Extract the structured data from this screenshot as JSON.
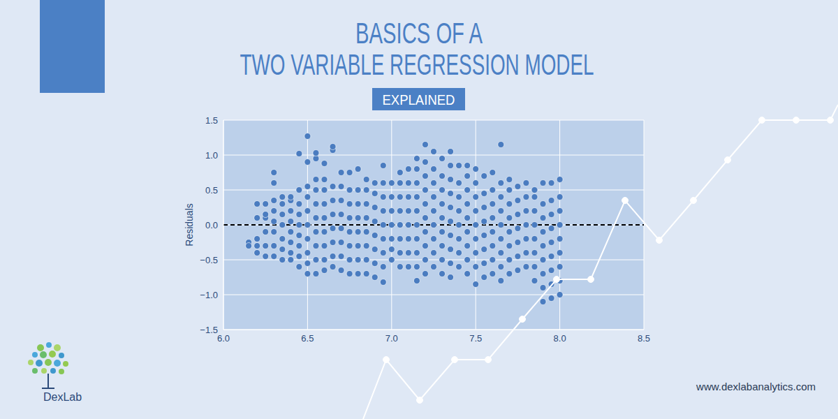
{
  "header": {
    "title": [
      "BASICS OF A",
      "TWO VARIABLE REGRESSION MODEL"
    ],
    "subtitle": "EXPLAINED"
  },
  "logo": "DexLab",
  "footer": "www.dexlabanalytics.com",
  "chart_data": {
    "type": "scatter",
    "y_label": "Residuals",
    "color": "#4a7cc0",
    "marker": "circle",
    "grid": true,
    "xlim": [
      6.0,
      8.5
    ],
    "xticks": [
      {
        "value": 6,
        "label": "6.0"
      },
      6.5,
      {
        "value": 7,
        "label": "7.0"
      },
      7.5,
      {
        "value": 8,
        "label": "8.0"
      },
      8.5
    ],
    "ylim": [
      -1.5,
      1.5
    ],
    "yticks": [
      {
        "value": -1.5,
        "label": "−1.5"
      },
      {
        "value": -1,
        "label": "−1.0"
      },
      {
        "value": -0.5,
        "label": "−0.5"
      },
      {
        "value": 0,
        "label": "0.0"
      },
      0.5,
      {
        "value": 1,
        "label": "1.0"
      },
      1.5
    ],
    "reference_line": {
      "y": 0,
      "color": "#000000",
      "line_style": "dashed"
    },
    "x": [
      6.15,
      6.15,
      6.2,
      6.2,
      6.2,
      6.2,
      6.2,
      6.25,
      6.25,
      6.25,
      6.25,
      6.25,
      6.25,
      6.3,
      6.3,
      6.3,
      6.3,
      6.3,
      6.3,
      6.3,
      6.3,
      6.35,
      6.35,
      6.35,
      6.35,
      6.35,
      6.35,
      6.35,
      6.4,
      6.4,
      6.4,
      6.4,
      6.4,
      6.4,
      6.4,
      6.4,
      6.45,
      6.45,
      6.45,
      6.45,
      6.45,
      6.45,
      6.45,
      6.45,
      6.45,
      6.5,
      6.5,
      6.5,
      6.5,
      6.5,
      6.5,
      6.5,
      6.5,
      6.5,
      6.5,
      6.55,
      6.55,
      6.55,
      6.55,
      6.55,
      6.55,
      6.55,
      6.55,
      6.55,
      6.55,
      6.6,
      6.6,
      6.6,
      6.6,
      6.6,
      6.6,
      6.6,
      6.6,
      6.6,
      6.65,
      6.65,
      6.65,
      6.65,
      6.65,
      6.65,
      6.65,
      6.65,
      6.65,
      6.7,
      6.7,
      6.7,
      6.7,
      6.7,
      6.7,
      6.7,
      6.7,
      6.75,
      6.75,
      6.75,
      6.75,
      6.75,
      6.75,
      6.75,
      6.75,
      6.8,
      6.8,
      6.8,
      6.8,
      6.8,
      6.8,
      6.8,
      6.8,
      6.85,
      6.85,
      6.85,
      6.85,
      6.85,
      6.85,
      6.85,
      6.85,
      6.9,
      6.9,
      6.9,
      6.9,
      6.9,
      6.9,
      6.9,
      6.9,
      6.95,
      6.95,
      6.95,
      6.95,
      6.95,
      6.95,
      6.95,
      6.95,
      6.95,
      7.0,
      7.0,
      7.0,
      7.0,
      7.0,
      7.0,
      7.0,
      7.05,
      7.05,
      7.05,
      7.05,
      7.05,
      7.05,
      7.05,
      7.05,
      7.1,
      7.1,
      7.1,
      7.1,
      7.1,
      7.1,
      7.1,
      7.1,
      7.15,
      7.15,
      7.15,
      7.15,
      7.15,
      7.15,
      7.15,
      7.15,
      7.15,
      7.15,
      7.2,
      7.2,
      7.2,
      7.2,
      7.2,
      7.2,
      7.2,
      7.2,
      7.2,
      7.2,
      7.25,
      7.25,
      7.25,
      7.25,
      7.25,
      7.25,
      7.25,
      7.25,
      7.25,
      7.3,
      7.3,
      7.3,
      7.3,
      7.3,
      7.3,
      7.3,
      7.3,
      7.3,
      7.35,
      7.35,
      7.35,
      7.35,
      7.35,
      7.35,
      7.35,
      7.35,
      7.35,
      7.35,
      7.4,
      7.4,
      7.4,
      7.4,
      7.4,
      7.4,
      7.4,
      7.4,
      7.45,
      7.45,
      7.45,
      7.45,
      7.45,
      7.45,
      7.45,
      7.45,
      7.45,
      7.5,
      7.5,
      7.5,
      7.5,
      7.5,
      7.5,
      7.5,
      7.5,
      7.5,
      7.55,
      7.55,
      7.55,
      7.55,
      7.55,
      7.55,
      7.55,
      7.55,
      7.6,
      7.6,
      7.6,
      7.6,
      7.6,
      7.6,
      7.6,
      7.6,
      7.65,
      7.65,
      7.65,
      7.65,
      7.65,
      7.65,
      7.65,
      7.65,
      7.65,
      7.7,
      7.7,
      7.7,
      7.7,
      7.7,
      7.7,
      7.7,
      7.7,
      7.75,
      7.75,
      7.75,
      7.75,
      7.75,
      7.75,
      7.75,
      7.8,
      7.8,
      7.8,
      7.8,
      7.8,
      7.8,
      7.8,
      7.85,
      7.85,
      7.85,
      7.85,
      7.85,
      7.85,
      7.85,
      7.85,
      7.9,
      7.9,
      7.9,
      7.9,
      7.9,
      7.9,
      7.9,
      7.9,
      7.9,
      7.95,
      7.95,
      7.95,
      7.95,
      7.95,
      7.95,
      7.95,
      7.95,
      7.95,
      8.0,
      8.0,
      8.0,
      8.0,
      8.0,
      8.0,
      8.0,
      8.0,
      8.0
    ],
    "values": [
      -0.25,
      -0.3,
      -0.4,
      -0.2,
      0.1,
      0.3,
      -0.3,
      -0.45,
      -0.3,
      -0.1,
      0.1,
      0.3,
      0.15,
      -0.45,
      -0.3,
      -0.1,
      0.05,
      0.2,
      0.35,
      0.6,
      0.75,
      -0.5,
      -0.35,
      -0.2,
      0,
      0.15,
      0.3,
      0.4,
      -0.5,
      -0.4,
      -0.25,
      -0.1,
      0.05,
      0.2,
      0.35,
      0.4,
      -0.6,
      -0.45,
      -0.3,
      -0.15,
      0,
      0.15,
      0.3,
      0.5,
      1.02,
      -0.7,
      -0.55,
      -0.4,
      -0.2,
      0,
      0.2,
      0.4,
      0.55,
      0.9,
      1.27,
      -0.7,
      -0.5,
      -0.3,
      -0.1,
      0.1,
      0.3,
      0.5,
      0.65,
      0.95,
      1.03,
      -0.65,
      -0.5,
      -0.3,
      -0.1,
      0.1,
      0.3,
      0.5,
      0.65,
      0.88,
      -0.6,
      -0.45,
      -0.25,
      -0.05,
      0.15,
      0.35,
      0.55,
      1.07,
      1.12,
      -0.65,
      -0.45,
      -0.25,
      -0.05,
      0.15,
      0.35,
      0.55,
      0.75,
      -0.7,
      -0.5,
      -0.3,
      -0.1,
      0.1,
      0.3,
      0.5,
      0.75,
      -0.7,
      -0.5,
      -0.3,
      -0.1,
      0.1,
      0.3,
      0.5,
      0.8,
      -0.7,
      -0.5,
      -0.3,
      -0.1,
      0.1,
      0.3,
      0.5,
      0.65,
      -0.75,
      -0.55,
      -0.35,
      -0.15,
      0.05,
      0.25,
      0.45,
      0.6,
      -0.82,
      -0.6,
      -0.4,
      -0.2,
      0,
      0.2,
      0.4,
      0.6,
      0.85,
      -0.5,
      -0.35,
      -0.2,
      0,
      0.2,
      0.4,
      0.6,
      -0.6,
      -0.4,
      -0.2,
      0,
      0.2,
      0.4,
      0.6,
      0.75,
      -0.6,
      -0.4,
      -0.2,
      0,
      0.2,
      0.4,
      0.6,
      0.8,
      -0.8,
      -0.6,
      -0.4,
      -0.2,
      0,
      0.2,
      0.4,
      0.6,
      0.8,
      0.95,
      -0.7,
      -0.5,
      -0.3,
      -0.1,
      0.1,
      0.3,
      0.5,
      0.7,
      0.9,
      1.15,
      -0.6,
      -0.4,
      -0.2,
      0,
      0.2,
      0.4,
      0.6,
      0.8,
      1.05,
      -0.7,
      -0.5,
      -0.3,
      -0.1,
      0.1,
      0.3,
      0.5,
      0.7,
      0.95,
      -0.75,
      -0.55,
      -0.35,
      -0.15,
      0.05,
      0.25,
      0.45,
      0.65,
      0.85,
      1.05,
      -0.6,
      -0.4,
      -0.2,
      0,
      0.2,
      0.4,
      0.6,
      0.85,
      -0.7,
      -0.5,
      -0.3,
      -0.1,
      0.1,
      0.3,
      0.5,
      0.7,
      0.85,
      -0.85,
      -0.6,
      -0.4,
      -0.2,
      0,
      0.2,
      0.4,
      0.6,
      0.8,
      -0.75,
      -0.55,
      -0.35,
      -0.15,
      0.05,
      0.25,
      0.45,
      0.7,
      -0.7,
      -0.5,
      -0.3,
      -0.1,
      0.1,
      0.3,
      0.5,
      0.75,
      -0.8,
      -0.6,
      -0.4,
      -0.2,
      0,
      0.2,
      0.4,
      0.6,
      1.15,
      -0.7,
      -0.5,
      -0.3,
      -0.1,
      0.1,
      0.3,
      0.5,
      0.65,
      -0.65,
      -0.45,
      -0.25,
      -0.05,
      0.15,
      0.35,
      0.55,
      -0.6,
      -0.4,
      -0.2,
      0,
      0.2,
      0.4,
      0.6,
      -0.8,
      -0.6,
      -0.4,
      -0.2,
      0,
      0.2,
      0.4,
      0.5,
      -1.1,
      -0.9,
      -0.7,
      -0.5,
      -0.3,
      -0.1,
      0.1,
      0.3,
      0.6,
      -1.05,
      -0.85,
      -0.65,
      -0.45,
      -0.25,
      -0.05,
      0.15,
      0.35,
      0.6,
      -1.0,
      -0.8,
      -0.6,
      -0.4,
      -0.2,
      0,
      0.2,
      0.4,
      0.65
    ]
  }
}
